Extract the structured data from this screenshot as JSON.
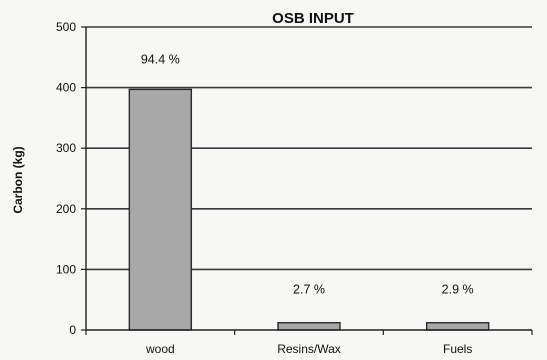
{
  "chart_data": {
    "type": "bar",
    "title": "OSB INPUT",
    "xlabel": "",
    "ylabel": "Carbon (kg)",
    "categories": [
      "wood",
      "Resins/Wax",
      "Fuels"
    ],
    "values": [
      397,
      12,
      12
    ],
    "data_labels": [
      "94.4 %",
      "2.7 %",
      "2.9 %"
    ],
    "ylim": [
      0,
      500
    ],
    "yticks": [
      0,
      100,
      200,
      300,
      400,
      500
    ],
    "grid": true,
    "legend": "none",
    "colors": {
      "bar_fill": "#a8a8a8",
      "bar_stroke": "#2a2a2a",
      "grid": "#3a3a3a",
      "axis": "#222222",
      "background": "#f7f7f5"
    }
  }
}
